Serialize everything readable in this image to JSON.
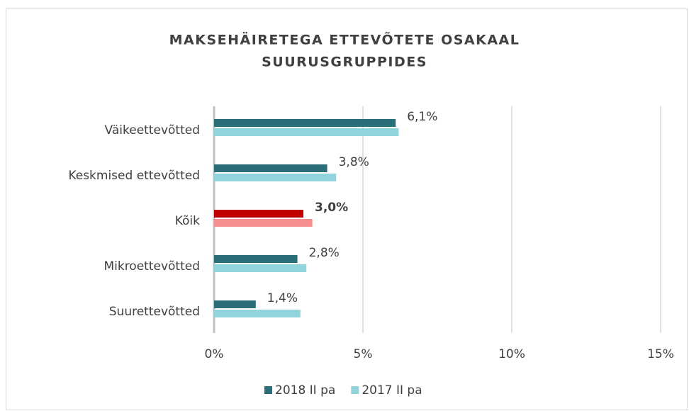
{
  "chart_data": {
    "type": "hbar",
    "title": [
      "MAKSEHÄIRETEGA ETTEVÕTETE OSAKAAL",
      "SUURUSGRUPPIDES"
    ],
    "categories": [
      "Väikeettevõtted",
      "Keskmised ettevõtted",
      "Kõik",
      "Mikroettevõtted",
      "Suurettevõtted"
    ],
    "series": [
      {
        "name": "2018 II pa",
        "color": "#2a6e7a",
        "colors": [
          "#2a6e7a",
          "#2a6e7a",
          "#c00000",
          "#2a6e7a",
          "#2a6e7a"
        ],
        "values": [
          6.1,
          3.8,
          3.0,
          2.8,
          1.4
        ],
        "value_labels": [
          "6,1%",
          "3,8%",
          "3,0%",
          "2,8%",
          "1,4%"
        ]
      },
      {
        "name": "2017 II pa",
        "color": "#92d4dc",
        "colors": [
          "#92d4dc",
          "#92d4dc",
          "#f4908f",
          "#92d4dc",
          "#92d4dc"
        ],
        "values": [
          6.2,
          4.1,
          3.3,
          3.1,
          2.9
        ]
      }
    ],
    "xlim": [
      0,
      15
    ],
    "xticks": [
      {
        "value": 0,
        "label": "0%"
      },
      {
        "value": 5,
        "label": "5%"
      },
      {
        "value": 10,
        "label": "10%"
      },
      {
        "value": 15,
        "label": "15%"
      }
    ],
    "grid": true,
    "legend": "bottom"
  }
}
